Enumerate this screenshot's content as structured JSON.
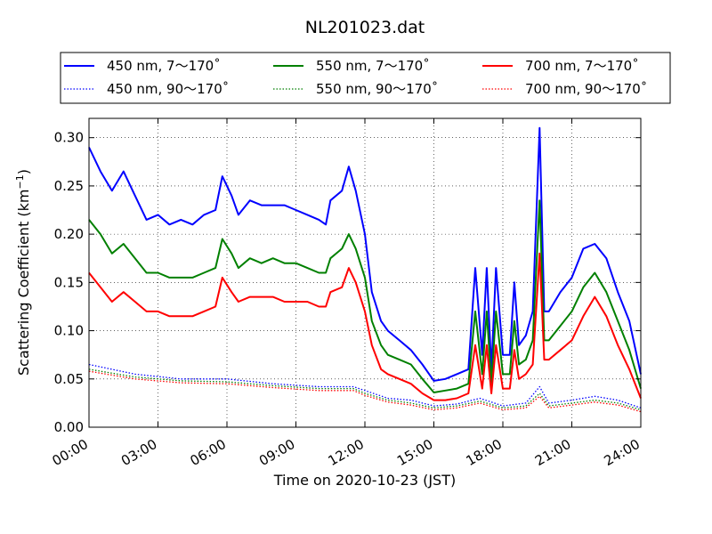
{
  "chart_data": {
    "type": "line",
    "title": "NL201023.dat",
    "xlabel": "Time on 2020-10-23 (JST)",
    "ylabel_main": "Scattering Coefficient (km",
    "ylabel_exp": "−1",
    "ylabel_close": ")",
    "xlim_hours": [
      0,
      24
    ],
    "ylim": [
      0,
      0.32
    ],
    "x_ticks": [
      {
        "value": 0,
        "label": "00:00"
      },
      {
        "value": 3,
        "label": "03:00"
      },
      {
        "value": 6,
        "label": "06:00"
      },
      {
        "value": 9,
        "label": "09:00"
      },
      {
        "value": 12,
        "label": "12:00"
      },
      {
        "value": 15,
        "label": "15:00"
      },
      {
        "value": 18,
        "label": "18:00"
      },
      {
        "value": 21,
        "label": "21:00"
      },
      {
        "value": 24,
        "label": "24:00"
      }
    ],
    "y_ticks": [
      {
        "value": 0.0,
        "label": "0.00"
      },
      {
        "value": 0.05,
        "label": "0.05"
      },
      {
        "value": 0.1,
        "label": "0.10"
      },
      {
        "value": 0.15,
        "label": "0.15"
      },
      {
        "value": 0.2,
        "label": "0.20"
      },
      {
        "value": 0.25,
        "label": "0.25"
      },
      {
        "value": 0.3,
        "label": "0.30"
      }
    ],
    "grid": true,
    "legend_position": "top, above plot",
    "series": [
      {
        "name": "450 nm, 7～170˚",
        "color": "#0000ff",
        "dash": "solid",
        "points": [
          [
            0,
            0.29
          ],
          [
            0.5,
            0.265
          ],
          [
            1,
            0.245
          ],
          [
            1.5,
            0.265
          ],
          [
            2,
            0.24
          ],
          [
            2.5,
            0.215
          ],
          [
            3,
            0.22
          ],
          [
            3.5,
            0.21
          ],
          [
            4,
            0.215
          ],
          [
            4.5,
            0.21
          ],
          [
            5,
            0.22
          ],
          [
            5.5,
            0.225
          ],
          [
            5.8,
            0.26
          ],
          [
            6.2,
            0.24
          ],
          [
            6.5,
            0.22
          ],
          [
            7,
            0.235
          ],
          [
            7.5,
            0.23
          ],
          [
            8,
            0.23
          ],
          [
            8.5,
            0.23
          ],
          [
            9,
            0.225
          ],
          [
            9.5,
            0.22
          ],
          [
            10,
            0.215
          ],
          [
            10.3,
            0.21
          ],
          [
            10.5,
            0.235
          ],
          [
            11,
            0.245
          ],
          [
            11.3,
            0.27
          ],
          [
            11.6,
            0.245
          ],
          [
            12,
            0.2
          ],
          [
            12.3,
            0.14
          ],
          [
            12.7,
            0.11
          ],
          [
            13,
            0.1
          ],
          [
            13.5,
            0.09
          ],
          [
            14,
            0.08
          ],
          [
            14.5,
            0.065
          ],
          [
            15,
            0.048
          ],
          [
            15.5,
            0.05
          ],
          [
            16,
            0.055
          ],
          [
            16.5,
            0.06
          ],
          [
            16.8,
            0.165
          ],
          [
            17.1,
            0.075
          ],
          [
            17.3,
            0.165
          ],
          [
            17.5,
            0.06
          ],
          [
            17.7,
            0.165
          ],
          [
            18,
            0.075
          ],
          [
            18.3,
            0.075
          ],
          [
            18.5,
            0.15
          ],
          [
            18.7,
            0.085
          ],
          [
            19,
            0.095
          ],
          [
            19.3,
            0.12
          ],
          [
            19.6,
            0.31
          ],
          [
            19.8,
            0.12
          ],
          [
            20,
            0.12
          ],
          [
            20.5,
            0.14
          ],
          [
            21,
            0.155
          ],
          [
            21.5,
            0.185
          ],
          [
            22,
            0.19
          ],
          [
            22.5,
            0.175
          ],
          [
            23,
            0.14
          ],
          [
            23.5,
            0.11
          ],
          [
            24,
            0.055
          ]
        ]
      },
      {
        "name": "450 nm, 90～170˚",
        "color": "#0000ff",
        "dash": "dotted",
        "points": [
          [
            0,
            0.065
          ],
          [
            2,
            0.055
          ],
          [
            4,
            0.05
          ],
          [
            6,
            0.05
          ],
          [
            8,
            0.045
          ],
          [
            10,
            0.042
          ],
          [
            11.5,
            0.042
          ],
          [
            12,
            0.038
          ],
          [
            13,
            0.03
          ],
          [
            14,
            0.028
          ],
          [
            15,
            0.022
          ],
          [
            16,
            0.024
          ],
          [
            17,
            0.03
          ],
          [
            18,
            0.022
          ],
          [
            19,
            0.025
          ],
          [
            19.6,
            0.042
          ],
          [
            20,
            0.025
          ],
          [
            21,
            0.028
          ],
          [
            22,
            0.032
          ],
          [
            23,
            0.028
          ],
          [
            24,
            0.02
          ]
        ]
      },
      {
        "name": "550 nm, 7～170˚",
        "color": "#008000",
        "dash": "solid",
        "points": [
          [
            0,
            0.215
          ],
          [
            0.5,
            0.2
          ],
          [
            1,
            0.18
          ],
          [
            1.5,
            0.19
          ],
          [
            2,
            0.175
          ],
          [
            2.5,
            0.16
          ],
          [
            3,
            0.16
          ],
          [
            3.5,
            0.155
          ],
          [
            4,
            0.155
          ],
          [
            4.5,
            0.155
          ],
          [
            5,
            0.16
          ],
          [
            5.5,
            0.165
          ],
          [
            5.8,
            0.195
          ],
          [
            6.2,
            0.18
          ],
          [
            6.5,
            0.165
          ],
          [
            7,
            0.175
          ],
          [
            7.5,
            0.17
          ],
          [
            8,
            0.175
          ],
          [
            8.5,
            0.17
          ],
          [
            9,
            0.17
          ],
          [
            9.5,
            0.165
          ],
          [
            10,
            0.16
          ],
          [
            10.3,
            0.16
          ],
          [
            10.5,
            0.175
          ],
          [
            11,
            0.185
          ],
          [
            11.3,
            0.2
          ],
          [
            11.6,
            0.185
          ],
          [
            12,
            0.155
          ],
          [
            12.3,
            0.11
          ],
          [
            12.7,
            0.085
          ],
          [
            13,
            0.075
          ],
          [
            13.5,
            0.07
          ],
          [
            14,
            0.065
          ],
          [
            14.5,
            0.05
          ],
          [
            15,
            0.036
          ],
          [
            15.5,
            0.038
          ],
          [
            16,
            0.04
          ],
          [
            16.5,
            0.045
          ],
          [
            16.8,
            0.12
          ],
          [
            17.1,
            0.055
          ],
          [
            17.3,
            0.12
          ],
          [
            17.5,
            0.045
          ],
          [
            17.7,
            0.12
          ],
          [
            18,
            0.055
          ],
          [
            18.3,
            0.055
          ],
          [
            18.5,
            0.11
          ],
          [
            18.7,
            0.065
          ],
          [
            19,
            0.07
          ],
          [
            19.3,
            0.09
          ],
          [
            19.6,
            0.235
          ],
          [
            19.8,
            0.09
          ],
          [
            20,
            0.09
          ],
          [
            20.5,
            0.105
          ],
          [
            21,
            0.12
          ],
          [
            21.5,
            0.145
          ],
          [
            22,
            0.16
          ],
          [
            22.5,
            0.14
          ],
          [
            23,
            0.11
          ],
          [
            23.5,
            0.08
          ],
          [
            24,
            0.04
          ]
        ]
      },
      {
        "name": "550 nm, 90～170˚",
        "color": "#008000",
        "dash": "dotted",
        "points": [
          [
            0,
            0.06
          ],
          [
            2,
            0.052
          ],
          [
            4,
            0.048
          ],
          [
            6,
            0.047
          ],
          [
            8,
            0.043
          ],
          [
            10,
            0.04
          ],
          [
            11.5,
            0.04
          ],
          [
            12,
            0.035
          ],
          [
            13,
            0.028
          ],
          [
            14,
            0.025
          ],
          [
            15,
            0.02
          ],
          [
            16,
            0.022
          ],
          [
            17,
            0.027
          ],
          [
            18,
            0.02
          ],
          [
            19,
            0.022
          ],
          [
            19.6,
            0.035
          ],
          [
            20,
            0.022
          ],
          [
            21,
            0.025
          ],
          [
            22,
            0.028
          ],
          [
            23,
            0.025
          ],
          [
            24,
            0.018
          ]
        ]
      },
      {
        "name": "700 nm, 7～170˚",
        "color": "#ff0000",
        "dash": "solid",
        "points": [
          [
            0,
            0.16
          ],
          [
            0.5,
            0.145
          ],
          [
            1,
            0.13
          ],
          [
            1.5,
            0.14
          ],
          [
            2,
            0.13
          ],
          [
            2.5,
            0.12
          ],
          [
            3,
            0.12
          ],
          [
            3.5,
            0.115
          ],
          [
            4,
            0.115
          ],
          [
            4.5,
            0.115
          ],
          [
            5,
            0.12
          ],
          [
            5.5,
            0.125
          ],
          [
            5.8,
            0.155
          ],
          [
            6.2,
            0.14
          ],
          [
            6.5,
            0.13
          ],
          [
            7,
            0.135
          ],
          [
            7.5,
            0.135
          ],
          [
            8,
            0.135
          ],
          [
            8.5,
            0.13
          ],
          [
            9,
            0.13
          ],
          [
            9.5,
            0.13
          ],
          [
            10,
            0.125
          ],
          [
            10.3,
            0.125
          ],
          [
            10.5,
            0.14
          ],
          [
            11,
            0.145
          ],
          [
            11.3,
            0.165
          ],
          [
            11.6,
            0.15
          ],
          [
            12,
            0.12
          ],
          [
            12.3,
            0.085
          ],
          [
            12.7,
            0.06
          ],
          [
            13,
            0.055
          ],
          [
            13.5,
            0.05
          ],
          [
            14,
            0.045
          ],
          [
            14.5,
            0.035
          ],
          [
            15,
            0.028
          ],
          [
            15.5,
            0.028
          ],
          [
            16,
            0.03
          ],
          [
            16.5,
            0.035
          ],
          [
            16.8,
            0.085
          ],
          [
            17.1,
            0.04
          ],
          [
            17.3,
            0.085
          ],
          [
            17.5,
            0.035
          ],
          [
            17.7,
            0.085
          ],
          [
            18,
            0.04
          ],
          [
            18.3,
            0.04
          ],
          [
            18.5,
            0.08
          ],
          [
            18.7,
            0.05
          ],
          [
            19,
            0.055
          ],
          [
            19.3,
            0.065
          ],
          [
            19.6,
            0.18
          ],
          [
            19.8,
            0.07
          ],
          [
            20,
            0.07
          ],
          [
            20.5,
            0.08
          ],
          [
            21,
            0.09
          ],
          [
            21.5,
            0.115
          ],
          [
            22,
            0.135
          ],
          [
            22.5,
            0.115
          ],
          [
            23,
            0.085
          ],
          [
            23.5,
            0.06
          ],
          [
            24,
            0.03
          ]
        ]
      },
      {
        "name": "700 nm, 90～170˚",
        "color": "#ff0000",
        "dash": "dotted",
        "points": [
          [
            0,
            0.058
          ],
          [
            2,
            0.05
          ],
          [
            4,
            0.046
          ],
          [
            6,
            0.045
          ],
          [
            8,
            0.041
          ],
          [
            10,
            0.038
          ],
          [
            11.5,
            0.038
          ],
          [
            12,
            0.033
          ],
          [
            13,
            0.026
          ],
          [
            14,
            0.023
          ],
          [
            15,
            0.018
          ],
          [
            16,
            0.02
          ],
          [
            17,
            0.025
          ],
          [
            18,
            0.018
          ],
          [
            19,
            0.02
          ],
          [
            19.6,
            0.032
          ],
          [
            20,
            0.02
          ],
          [
            21,
            0.023
          ],
          [
            22,
            0.026
          ],
          [
            23,
            0.023
          ],
          [
            24,
            0.016
          ]
        ]
      }
    ]
  }
}
